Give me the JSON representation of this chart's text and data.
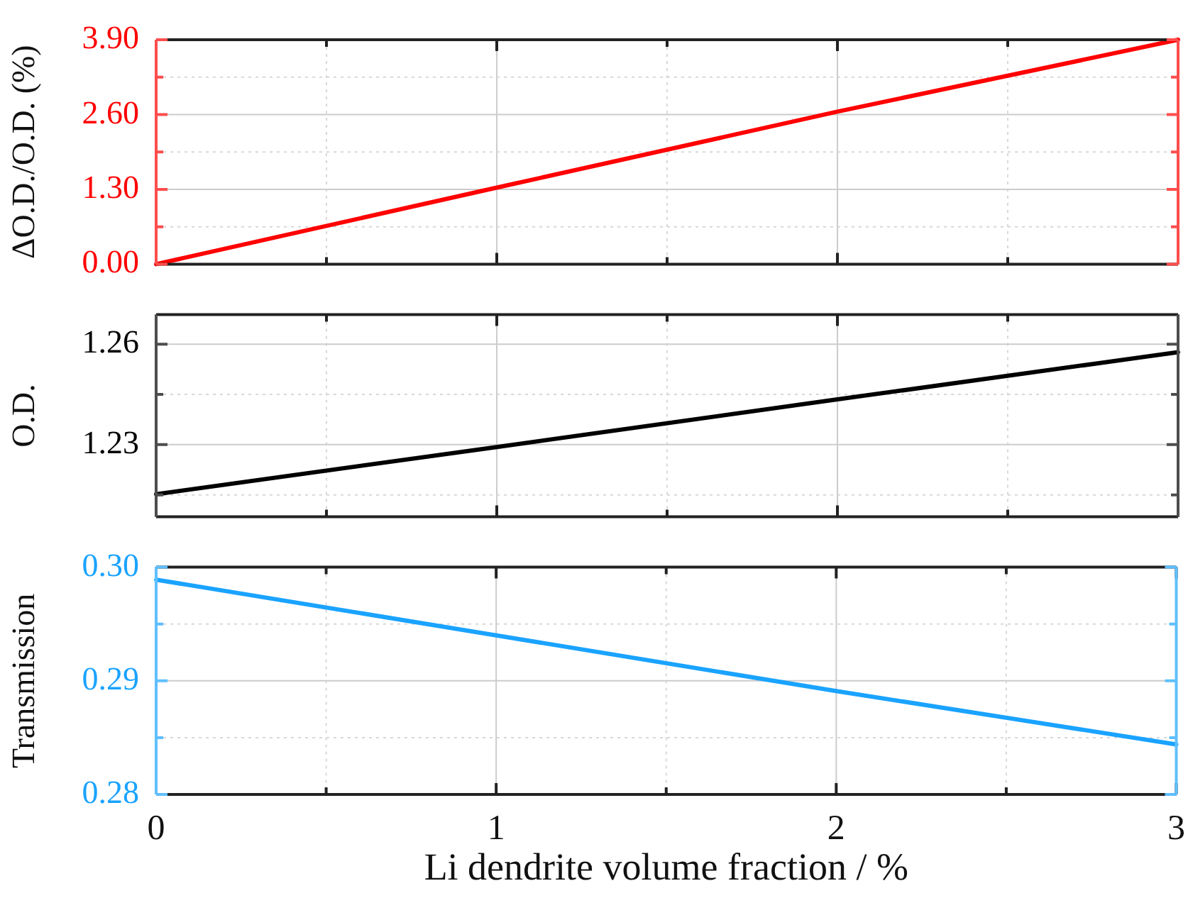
{
  "chart_data": [
    {
      "type": "line",
      "x": [
        0,
        1,
        2,
        3
      ],
      "xlim": [
        0,
        3
      ],
      "xticks": [
        0,
        {
          "value": 0.5,
          "label": null
        },
        1,
        {
          "value": 1.5,
          "label": null
        },
        2,
        {
          "value": 2.5,
          "label": null
        },
        3
      ],
      "ylim": [
        0,
        3.9
      ],
      "yticks": [
        {
          "value": 0,
          "label": "0.00"
        },
        {
          "value": 0.65,
          "label": null
        },
        {
          "value": 1.3,
          "label": "1.30"
        },
        {
          "value": 1.95,
          "label": null
        },
        {
          "value": 2.6,
          "label": "2.60"
        },
        {
          "value": 3.25,
          "label": null
        },
        {
          "value": 3.9,
          "label": "3.90"
        }
      ],
      "ylabel": "ΔO.D./O.D. (%)",
      "grid": true,
      "tick_labels": "y",
      "marker": "none",
      "series": [
        {
          "color": "#ff0000",
          "values": [
            0,
            1.33,
            2.65,
            3.9
          ]
        }
      ]
    },
    {
      "type": "line",
      "x": [
        0,
        1,
        2,
        3
      ],
      "xlim": [
        0,
        3
      ],
      "xticks": [
        0,
        {
          "value": 0.5,
          "label": null
        },
        1,
        {
          "value": 1.5,
          "label": null
        },
        2,
        {
          "value": 2.5,
          "label": null
        },
        3
      ],
      "ylim": [
        1.2085,
        1.2688
      ],
      "yticks": [
        {
          "value": 1.215,
          "label": null
        },
        1.23,
        {
          "value": 1.245,
          "label": null
        },
        1.26
      ],
      "ylabel": "O.D.",
      "grid": true,
      "tick_labels": "y",
      "marker": "none",
      "series": [
        {
          "color": "#000000",
          "values": [
            1.2152,
            1.2293,
            1.2435,
            1.2576
          ]
        }
      ]
    },
    {
      "type": "line",
      "x": [
        0,
        1,
        2,
        3
      ],
      "xlim": [
        0,
        3
      ],
      "xticks": [
        0,
        {
          "value": 0.5,
          "label": null
        },
        1,
        {
          "value": 1.5,
          "label": null
        },
        2,
        {
          "value": 2.5,
          "label": null
        },
        3
      ],
      "ylim": [
        0.28,
        0.3
      ],
      "yticks": [
        {
          "value": 0.28,
          "label": "0.28"
        },
        {
          "value": 0.285,
          "label": null
        },
        {
          "value": 0.29,
          "label": "0.29"
        },
        {
          "value": 0.295,
          "label": null
        },
        {
          "value": 0.3,
          "label": "0.30"
        }
      ],
      "ylabel": "Transmission",
      "xlabel": "Li dendrite volume fraction / %",
      "grid": true,
      "marker": "none",
      "series": [
        {
          "color": "#1aa3ff",
          "values": [
            0.2989,
            0.294,
            0.2891,
            0.2844
          ]
        }
      ]
    }
  ]
}
